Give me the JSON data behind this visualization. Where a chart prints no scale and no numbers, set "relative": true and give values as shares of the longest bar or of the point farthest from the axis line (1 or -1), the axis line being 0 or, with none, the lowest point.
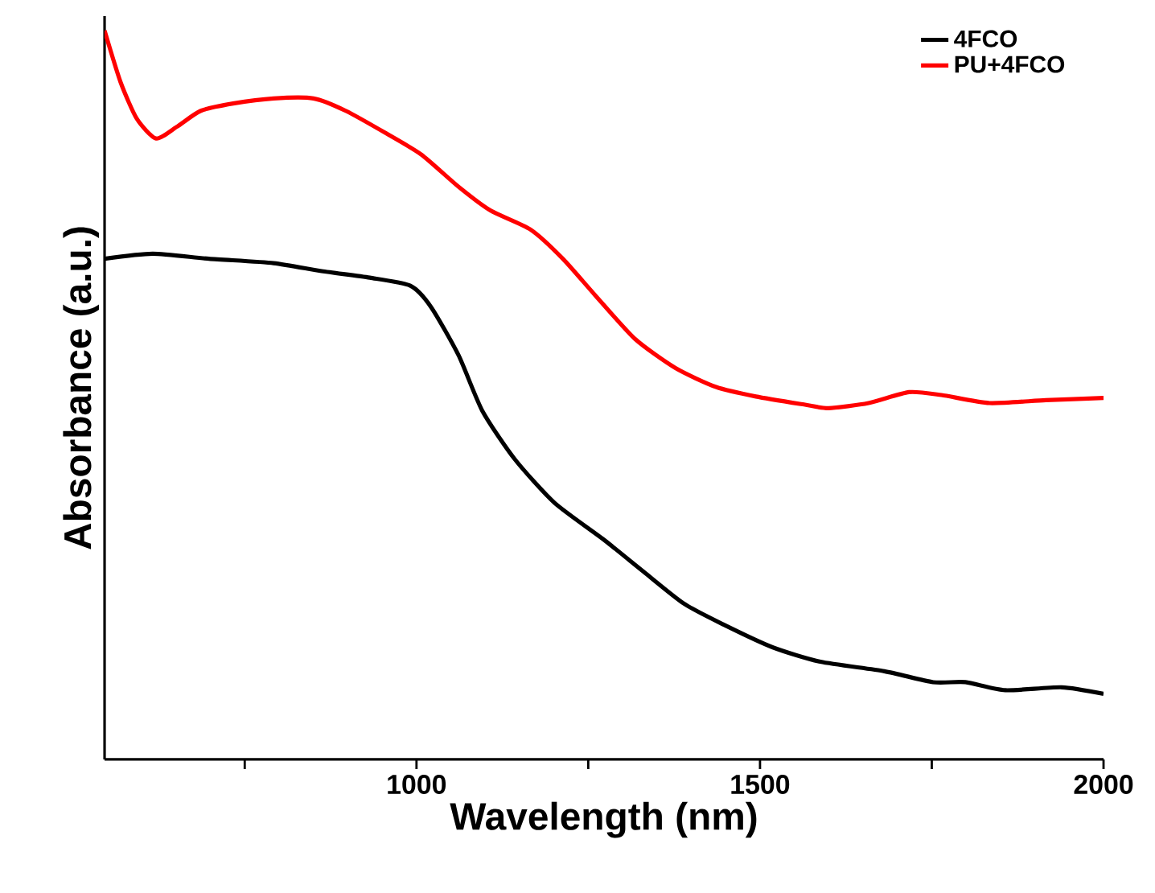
{
  "chart_data": {
    "type": "line",
    "xlabel": "Wavelength (nm)",
    "ylabel": "Absorbance (a.u.)",
    "relative": true,
    "xlim": [
      546,
      2000
    ],
    "xticks": [
      {
        "value": 750,
        "label": null
      },
      1000,
      {
        "value": 1250,
        "label": null
      },
      1500,
      {
        "value": 1750,
        "label": null
      },
      2000
    ],
    "legend": "top right",
    "series": [
      {
        "name": "4FCO",
        "color": "#000000",
        "x": [
          546,
          616,
          698,
          792,
          862,
          932,
          991,
          1021,
          1061,
          1096,
          1143,
          1201,
          1272,
          1330,
          1389,
          1447,
          1518,
          1588,
          1681,
          1752,
          1799,
          1857,
          1939,
          2000
        ],
        "values": [
          0.687,
          0.694,
          0.687,
          0.681,
          0.67,
          0.661,
          0.65,
          0.621,
          0.555,
          0.478,
          0.412,
          0.352,
          0.302,
          0.258,
          0.214,
          0.185,
          0.154,
          0.134,
          0.121,
          0.106,
          0.106,
          0.095,
          0.099,
          0.09
        ]
      },
      {
        "name": "PU+4FCO",
        "color": "#ff0000",
        "x": [
          546,
          569,
          593,
          621,
          651,
          686,
          733,
          792,
          850,
          897,
          956,
          1007,
          1061,
          1108,
          1166,
          1213,
          1260,
          1318,
          1377,
          1436,
          1494,
          1564,
          1600,
          1658,
          1717,
          1764,
          1834,
          1916,
          2000
        ],
        "values": [
          1.0,
          0.93,
          0.879,
          0.852,
          0.868,
          0.89,
          0.9,
          0.907,
          0.907,
          0.89,
          0.859,
          0.83,
          0.786,
          0.753,
          0.727,
          0.687,
          0.637,
          0.577,
          0.537,
          0.511,
          0.498,
          0.487,
          0.482,
          0.489,
          0.504,
          0.5,
          0.489,
          0.493,
          0.496
        ]
      }
    ]
  }
}
